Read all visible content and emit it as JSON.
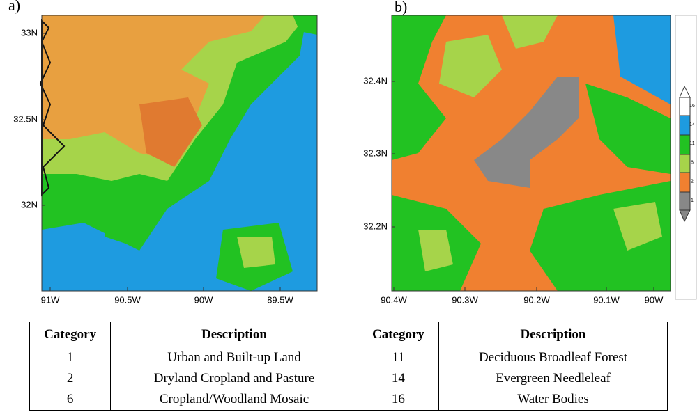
{
  "panels": [
    {
      "label": "a)",
      "yticks": [
        "33N",
        "32.5N",
        "32N"
      ],
      "xticks": [
        "91W",
        "90.5W",
        "90W",
        "89.5W"
      ]
    },
    {
      "label": "b)",
      "yticks": [
        "32.4N",
        "32.3N",
        "32.2N"
      ],
      "xticks": [
        "90.4W",
        "90.3W",
        "90.2W",
        "90.1W",
        "90W"
      ],
      "colorbar": [
        "16",
        "14",
        "11",
        "6",
        "2",
        "1"
      ]
    }
  ],
  "table": {
    "header": [
      "Category",
      "Description",
      "Category",
      "Description"
    ],
    "rows": [
      [
        "1",
        "Urban and Built-up Land",
        "11",
        "Deciduous Broadleaf Forest"
      ],
      [
        "2",
        "Dryland Cropland and Pasture",
        "14",
        "Evergreen Needleleaf"
      ],
      [
        "6",
        "Cropland/Woodland Mosaic",
        "16",
        "Water Bodies"
      ]
    ]
  }
}
